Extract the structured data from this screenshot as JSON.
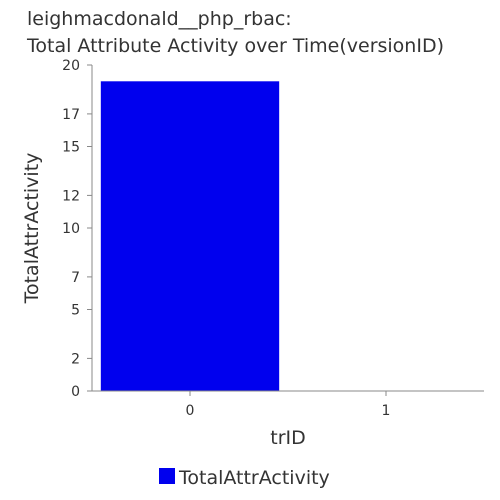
{
  "chart_data": {
    "type": "bar",
    "title": [
      "leighmacdonald__php_rbac:",
      "Total Attribute Activity over Time(versionID)"
    ],
    "xlabel": "trID",
    "ylabel": "TotalAttrActivity",
    "categories": [
      "0",
      "1"
    ],
    "series": [
      {
        "name": "TotalAttrActivity",
        "values": [
          19,
          0
        ],
        "color": "#0000ee"
      }
    ],
    "ylim": [
      0,
      20
    ],
    "yticks": [
      0,
      2,
      5,
      7,
      10,
      12,
      15,
      17,
      20
    ],
    "grid": false,
    "legend": "bottom"
  }
}
